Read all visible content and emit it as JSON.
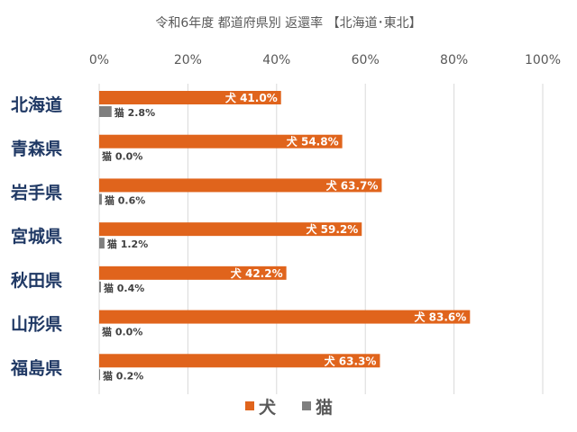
{
  "chart_data": {
    "type": "bar",
    "orientation": "horizontal",
    "title": "令和6年度 都道府県別 返還率 【北海道･東北】",
    "categories": [
      "北海道",
      "青森県",
      "岩手県",
      "宮城県",
      "秋田県",
      "山形県",
      "福島県"
    ],
    "series": [
      {
        "name": "犬",
        "color": "#e0641c",
        "values": [
          41.0,
          54.8,
          63.7,
          59.2,
          42.2,
          83.6,
          63.3
        ],
        "labels": [
          "犬 41.0%",
          "犬 54.8%",
          "犬 63.7%",
          "犬 59.2%",
          "犬 42.2%",
          "犬 83.6%",
          "犬 63.3%"
        ]
      },
      {
        "name": "猫",
        "color": "#7f7f7f",
        "values": [
          2.8,
          0.0,
          0.6,
          1.2,
          0.4,
          0.0,
          0.2
        ],
        "labels": [
          "猫 2.8%",
          "猫 0.0%",
          "猫 0.6%",
          "猫 1.2%",
          "猫 0.4%",
          "猫 0.0%",
          "猫 0.2%"
        ]
      }
    ],
    "xlim": [
      0,
      100
    ],
    "ticks": [
      0,
      20,
      40,
      60,
      80,
      100
    ],
    "tick_labels": [
      "0%",
      "20%",
      "40%",
      "60%",
      "80%",
      "100%"
    ],
    "xaxis_position": "top",
    "grid": true,
    "legend_position": "bottom"
  }
}
